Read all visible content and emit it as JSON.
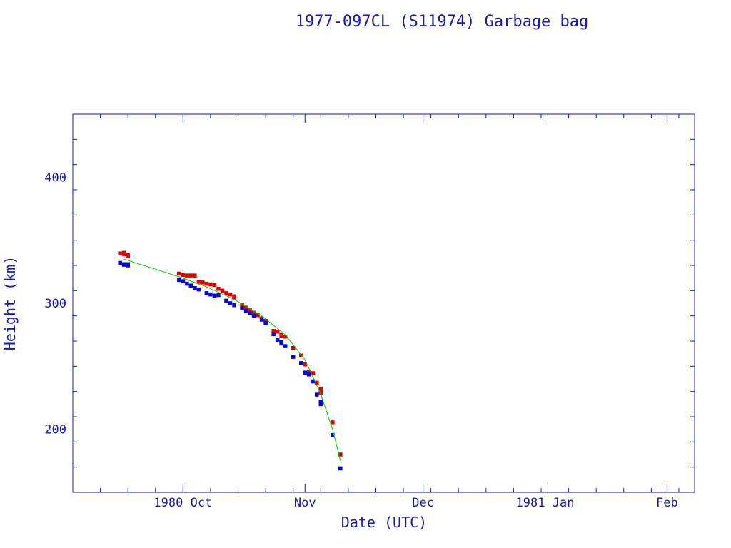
{
  "chart_data": {
    "type": "scatter",
    "title": "1977-097CL (S11974) Garbage bag",
    "xlabel": "Date (UTC)",
    "ylabel": "Height (km)",
    "xlim": [
      "1980-09-03",
      "1981-02-08"
    ],
    "ylim": [
      150,
      450
    ],
    "x_ticks": [
      {
        "date": "1980-10-01",
        "label": "1980 Oct"
      },
      {
        "date": "1980-11-01",
        "label": "Nov"
      },
      {
        "date": "1980-12-01",
        "label": "Dec"
      },
      {
        "date": "1981-01-01",
        "label": "1981 Jan"
      },
      {
        "date": "1981-02-01",
        "label": "Feb"
      }
    ],
    "y_ticks": [
      200,
      300,
      400
    ],
    "colors": {
      "axis": "#1a1aa6",
      "apogee": "#e00000",
      "perigee": "#0000e0",
      "fit": "#00cc00"
    },
    "series": [
      {
        "key": "apogee",
        "values": [
          [
            "1980-09-15",
            339.5
          ],
          [
            "1980-09-16",
            340
          ],
          [
            "1980-09-16",
            339
          ],
          [
            "1980-09-17",
            338.5
          ],
          [
            "1980-09-17",
            337.5
          ],
          [
            "1980-09-30",
            323.5
          ],
          [
            "1980-10-01",
            322.5
          ],
          [
            "1980-10-02",
            322
          ],
          [
            "1980-10-03",
            322
          ],
          [
            "1980-10-04",
            322
          ],
          [
            "1980-10-05",
            317
          ],
          [
            "1980-10-06",
            316.5
          ],
          [
            "1980-10-07",
            315.5
          ],
          [
            "1980-10-08",
            315
          ],
          [
            "1980-10-09",
            314.5
          ],
          [
            "1980-10-10",
            311.5
          ],
          [
            "1980-10-11",
            310
          ],
          [
            "1980-10-12",
            308
          ],
          [
            "1980-10-13",
            307
          ],
          [
            "1980-10-14",
            305.5
          ],
          [
            "1980-10-14",
            304.5
          ],
          [
            "1980-10-16",
            299
          ],
          [
            "1980-10-17",
            296.5
          ],
          [
            "1980-10-18",
            294.5
          ],
          [
            "1980-10-19",
            292.5
          ],
          [
            "1980-10-20",
            290.5
          ],
          [
            "1980-10-21",
            288
          ],
          [
            "1980-10-22",
            286
          ],
          [
            "1980-10-24",
            278
          ],
          [
            "1980-10-25",
            277.5
          ],
          [
            "1980-10-26",
            275
          ],
          [
            "1980-10-26",
            274
          ],
          [
            "1980-10-27",
            273.5
          ],
          [
            "1980-10-29",
            264.5
          ],
          [
            "1980-10-31",
            258.5
          ],
          [
            "1980-11-01",
            251.5
          ],
          [
            "1980-11-02",
            245.5
          ],
          [
            "1980-11-03",
            244.5
          ],
          [
            "1980-11-04",
            237
          ],
          [
            "1980-11-05",
            232
          ],
          [
            "1980-11-05",
            229
          ],
          [
            "1980-11-08",
            205.5
          ],
          [
            "1980-11-10",
            180
          ]
        ]
      },
      {
        "key": "perigee",
        "values": [
          [
            "1980-09-15",
            332
          ],
          [
            "1980-09-16",
            331
          ],
          [
            "1980-09-16",
            330.5
          ],
          [
            "1980-09-17",
            331
          ],
          [
            "1980-09-17",
            330
          ],
          [
            "1980-09-30",
            318.5
          ],
          [
            "1980-10-01",
            317.5
          ],
          [
            "1980-10-02",
            315.5
          ],
          [
            "1980-10-03",
            314
          ],
          [
            "1980-10-04",
            312
          ],
          [
            "1980-10-05",
            311
          ],
          [
            "1980-10-07",
            308
          ],
          [
            "1980-10-08",
            307
          ],
          [
            "1980-10-09",
            306
          ],
          [
            "1980-10-10",
            306.5
          ],
          [
            "1980-10-12",
            302
          ],
          [
            "1980-10-13",
            300
          ],
          [
            "1980-10-14",
            298.5
          ],
          [
            "1980-10-16",
            296
          ],
          [
            "1980-10-17",
            294
          ],
          [
            "1980-10-18",
            292
          ],
          [
            "1980-10-19",
            290
          ],
          [
            "1980-10-21",
            287
          ],
          [
            "1980-10-22",
            284.5
          ],
          [
            "1980-10-24",
            275.5
          ],
          [
            "1980-10-25",
            271
          ],
          [
            "1980-10-26",
            269
          ],
          [
            "1980-10-26",
            268
          ],
          [
            "1980-10-27",
            266
          ],
          [
            "1980-10-29",
            257.5
          ],
          [
            "1980-10-31",
            252.5
          ],
          [
            "1980-11-01",
            245
          ],
          [
            "1980-11-02",
            243.5
          ],
          [
            "1980-11-03",
            238
          ],
          [
            "1980-11-04",
            227.5
          ],
          [
            "1980-11-05",
            222
          ],
          [
            "1980-11-05",
            220
          ],
          [
            "1980-11-08",
            195.5
          ],
          [
            "1980-11-10",
            169
          ]
        ]
      },
      {
        "key": "fit",
        "values": [
          [
            "1980-09-16",
            335
          ],
          [
            "1980-09-30",
            321
          ],
          [
            "1980-10-07",
            313
          ],
          [
            "1980-10-14",
            303
          ],
          [
            "1980-10-21",
            290
          ],
          [
            "1980-10-27",
            275
          ],
          [
            "1980-11-01",
            255
          ],
          [
            "1980-11-05",
            228
          ],
          [
            "1980-11-08",
            200
          ],
          [
            "1980-11-10",
            175
          ]
        ]
      }
    ]
  }
}
